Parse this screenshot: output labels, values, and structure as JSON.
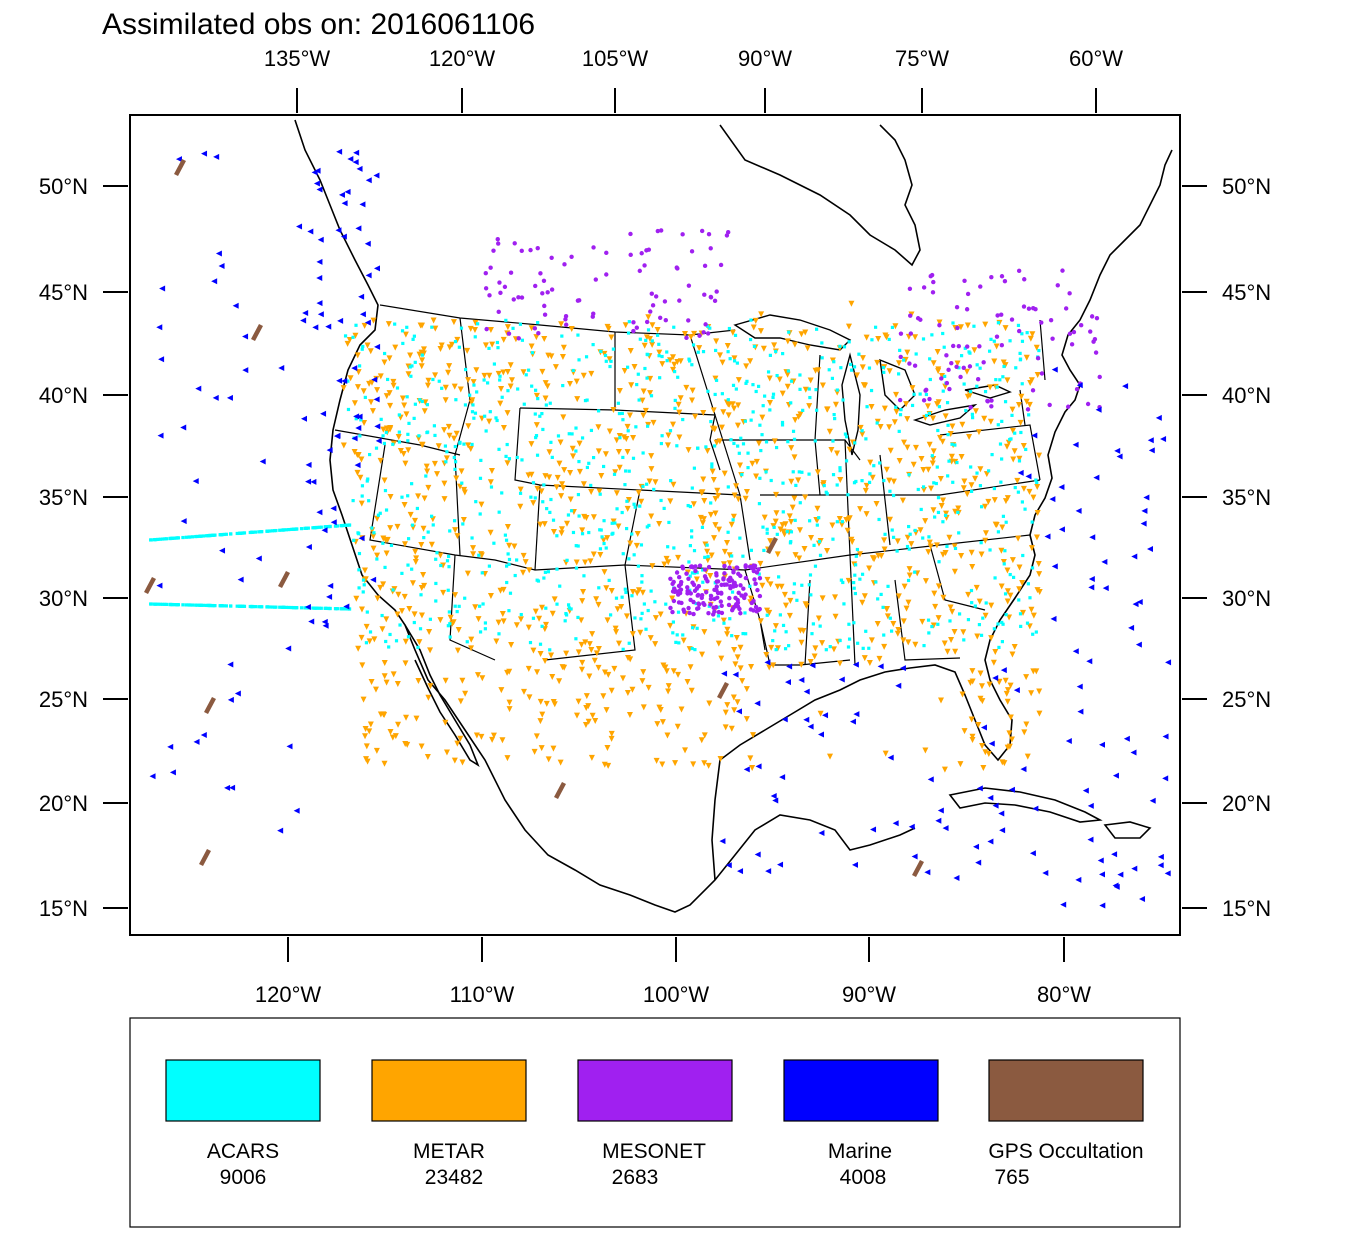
{
  "title": "Assimilated obs on: 2016061106",
  "axes": {
    "top": [
      "135°W",
      "120°W",
      "105°W",
      "90°W",
      "75°W",
      "60°W"
    ],
    "bottom": [
      "120°W",
      "110°W",
      "100°W",
      "90°W",
      "80°W"
    ],
    "lat": [
      "50°N",
      "45°N",
      "40°N",
      "35°N",
      "30°N",
      "25°N",
      "20°N",
      "15°N"
    ]
  },
  "legend": [
    {
      "label": "ACARS",
      "count": "9006",
      "color": "#00ffff"
    },
    {
      "label": "METAR",
      "count": "23482",
      "color": "#ffa500"
    },
    {
      "label": "MESONET",
      "count": "2683",
      "color": "#a020f0"
    },
    {
      "label": "Marine",
      "count": "4008",
      "color": "#0000ff"
    },
    {
      "label": "GPS Occultation",
      "count": "765",
      "color": "#8b5a40"
    }
  ]
}
